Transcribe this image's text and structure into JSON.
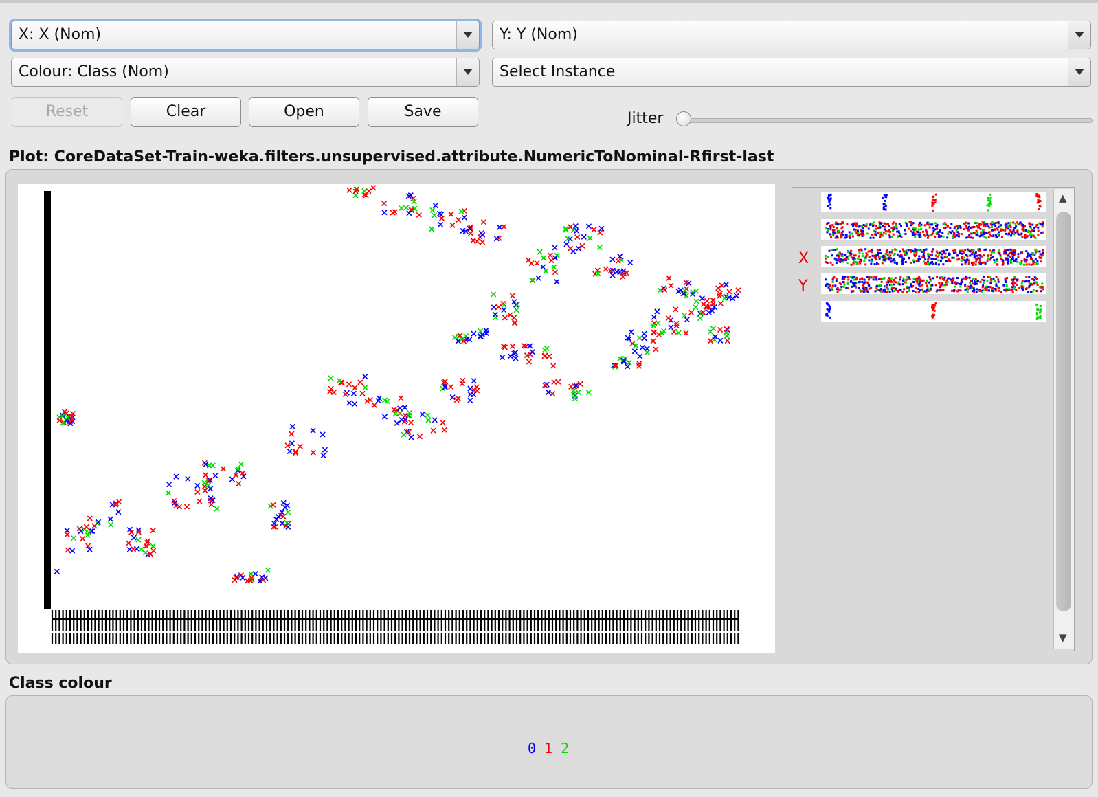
{
  "controls": {
    "x_axis": "X: X (Nom)",
    "y_axis": "Y: Y (Nom)",
    "colour": "Colour: Class (Nom)",
    "select_instance": "Select Instance",
    "buttons": {
      "reset": "Reset",
      "clear": "Clear",
      "open": "Open",
      "save": "Save"
    },
    "jitter_label": "Jitter",
    "jitter_value": 0
  },
  "plot": {
    "title": "Plot: CoreDataSet-Train-weka.filters.unsupervised.attribute.NumericToNominal-Rfirst-last"
  },
  "matrix": {
    "row_labels": [
      "X",
      "Y"
    ]
  },
  "class_colour": {
    "title": "Class colour",
    "classes": [
      {
        "label": "0",
        "color": "#0000ff"
      },
      {
        "label": "1",
        "color": "#ff0000"
      },
      {
        "label": "2",
        "color": "#00dd00"
      }
    ]
  },
  "colors": {
    "class0": "#0000ff",
    "class1": "#ff0000",
    "class2": "#00dd00"
  },
  "icons": {
    "combo_arrow": "chevron-down-icon",
    "scroll_up": "arrow-up-icon",
    "scroll_down": "arrow-down-icon"
  }
}
